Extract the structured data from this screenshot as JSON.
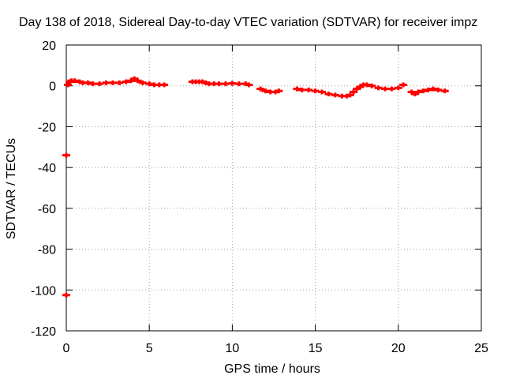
{
  "chart_data": {
    "type": "scatter",
    "title": "Day 138 of 2018, Sidereal Day-to-day VTEC variation (SDTVAR) for receiver impz",
    "xlabel": "GPS time / hours",
    "ylabel": "SDTVAR / TECUs",
    "xlim": [
      0,
      25
    ],
    "ylim": [
      -120,
      20
    ],
    "xticks": [
      0,
      5,
      10,
      15,
      20,
      25
    ],
    "xtick_labels": [
      "0",
      "5",
      "10",
      "15",
      "20",
      "25"
    ],
    "yticks": [
      -120,
      -100,
      -80,
      -60,
      -40,
      -20,
      0,
      20
    ],
    "ytick_labels": [
      "-120",
      "-100",
      "-80",
      "-60",
      "-40",
      "-20",
      "0",
      "20"
    ],
    "grid": true,
    "series": [
      {
        "name": "SDTVAR",
        "color": "#ff0000",
        "x": [
          0.0,
          0.0,
          0.1,
          0.2,
          0.3,
          0.5,
          0.8,
          1.0,
          1.3,
          1.6,
          2.0,
          2.4,
          2.8,
          3.2,
          3.6,
          3.9,
          4.1,
          4.3,
          4.6,
          5.0,
          5.3,
          5.6,
          5.9,
          7.6,
          7.8,
          8.0,
          8.2,
          8.4,
          8.6,
          8.9,
          9.2,
          9.6,
          10.0,
          10.4,
          10.8,
          11.0,
          11.7,
          12.0,
          12.3,
          12.6,
          12.8,
          13.9,
          14.2,
          14.6,
          15.0,
          15.4,
          15.8,
          16.2,
          16.6,
          16.9,
          17.1,
          17.3,
          17.5,
          17.7,
          17.9,
          18.1,
          18.4,
          18.8,
          19.2,
          19.6,
          20.0,
          20.3,
          20.8,
          21.0,
          21.2,
          21.5,
          21.8,
          22.1,
          22.4,
          22.8
        ],
        "y": [
          -34,
          -102.5,
          0.5,
          2,
          2.5,
          2.5,
          2,
          1.5,
          1.5,
          1,
          1,
          1.5,
          1.5,
          1.5,
          2,
          2.5,
          3.5,
          2.5,
          1.5,
          1,
          0.5,
          0.5,
          0.5,
          2,
          2,
          2,
          2,
          1.5,
          1,
          1,
          1,
          1,
          1.2,
          1,
          1,
          0.5,
          -1.5,
          -2.5,
          -3,
          -3,
          -2.5,
          -1.5,
          -2,
          -2,
          -2.5,
          -3,
          -4,
          -4.5,
          -5,
          -5,
          -4.5,
          -3,
          -1.5,
          -0.5,
          0.5,
          0.5,
          0,
          -1,
          -1.5,
          -1.5,
          -1,
          0.5,
          -3,
          -4,
          -3,
          -2.5,
          -2,
          -1.5,
          -2,
          -2.5
        ]
      }
    ]
  }
}
